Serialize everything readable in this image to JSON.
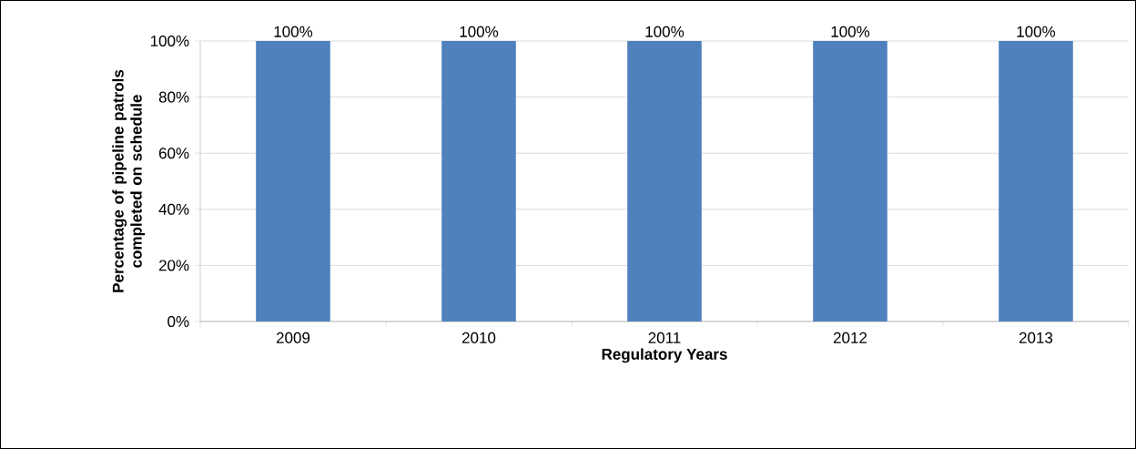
{
  "chart_data": {
    "type": "bar",
    "xlabel": "Regulatory Years",
    "ylabel": "Percentage of pipeline patrols completed on schedule",
    "categories": [
      "2009",
      "2010",
      "2011",
      "2012",
      "2013"
    ],
    "values": [
      100,
      100,
      100,
      100,
      100
    ],
    "value_labels": [
      "100%",
      "100%",
      "100%",
      "100%",
      "100%"
    ],
    "color": "#4f81bd",
    "ylim": [
      0,
      100
    ],
    "yticks": [
      {
        "value": 0,
        "label": "0%"
      },
      {
        "value": 20,
        "label": "20%"
      },
      {
        "value": 40,
        "label": "40%"
      },
      {
        "value": 60,
        "label": "60%"
      },
      {
        "value": 80,
        "label": "80%"
      },
      {
        "value": 100,
        "label": "100%"
      }
    ],
    "grid": "y"
  }
}
